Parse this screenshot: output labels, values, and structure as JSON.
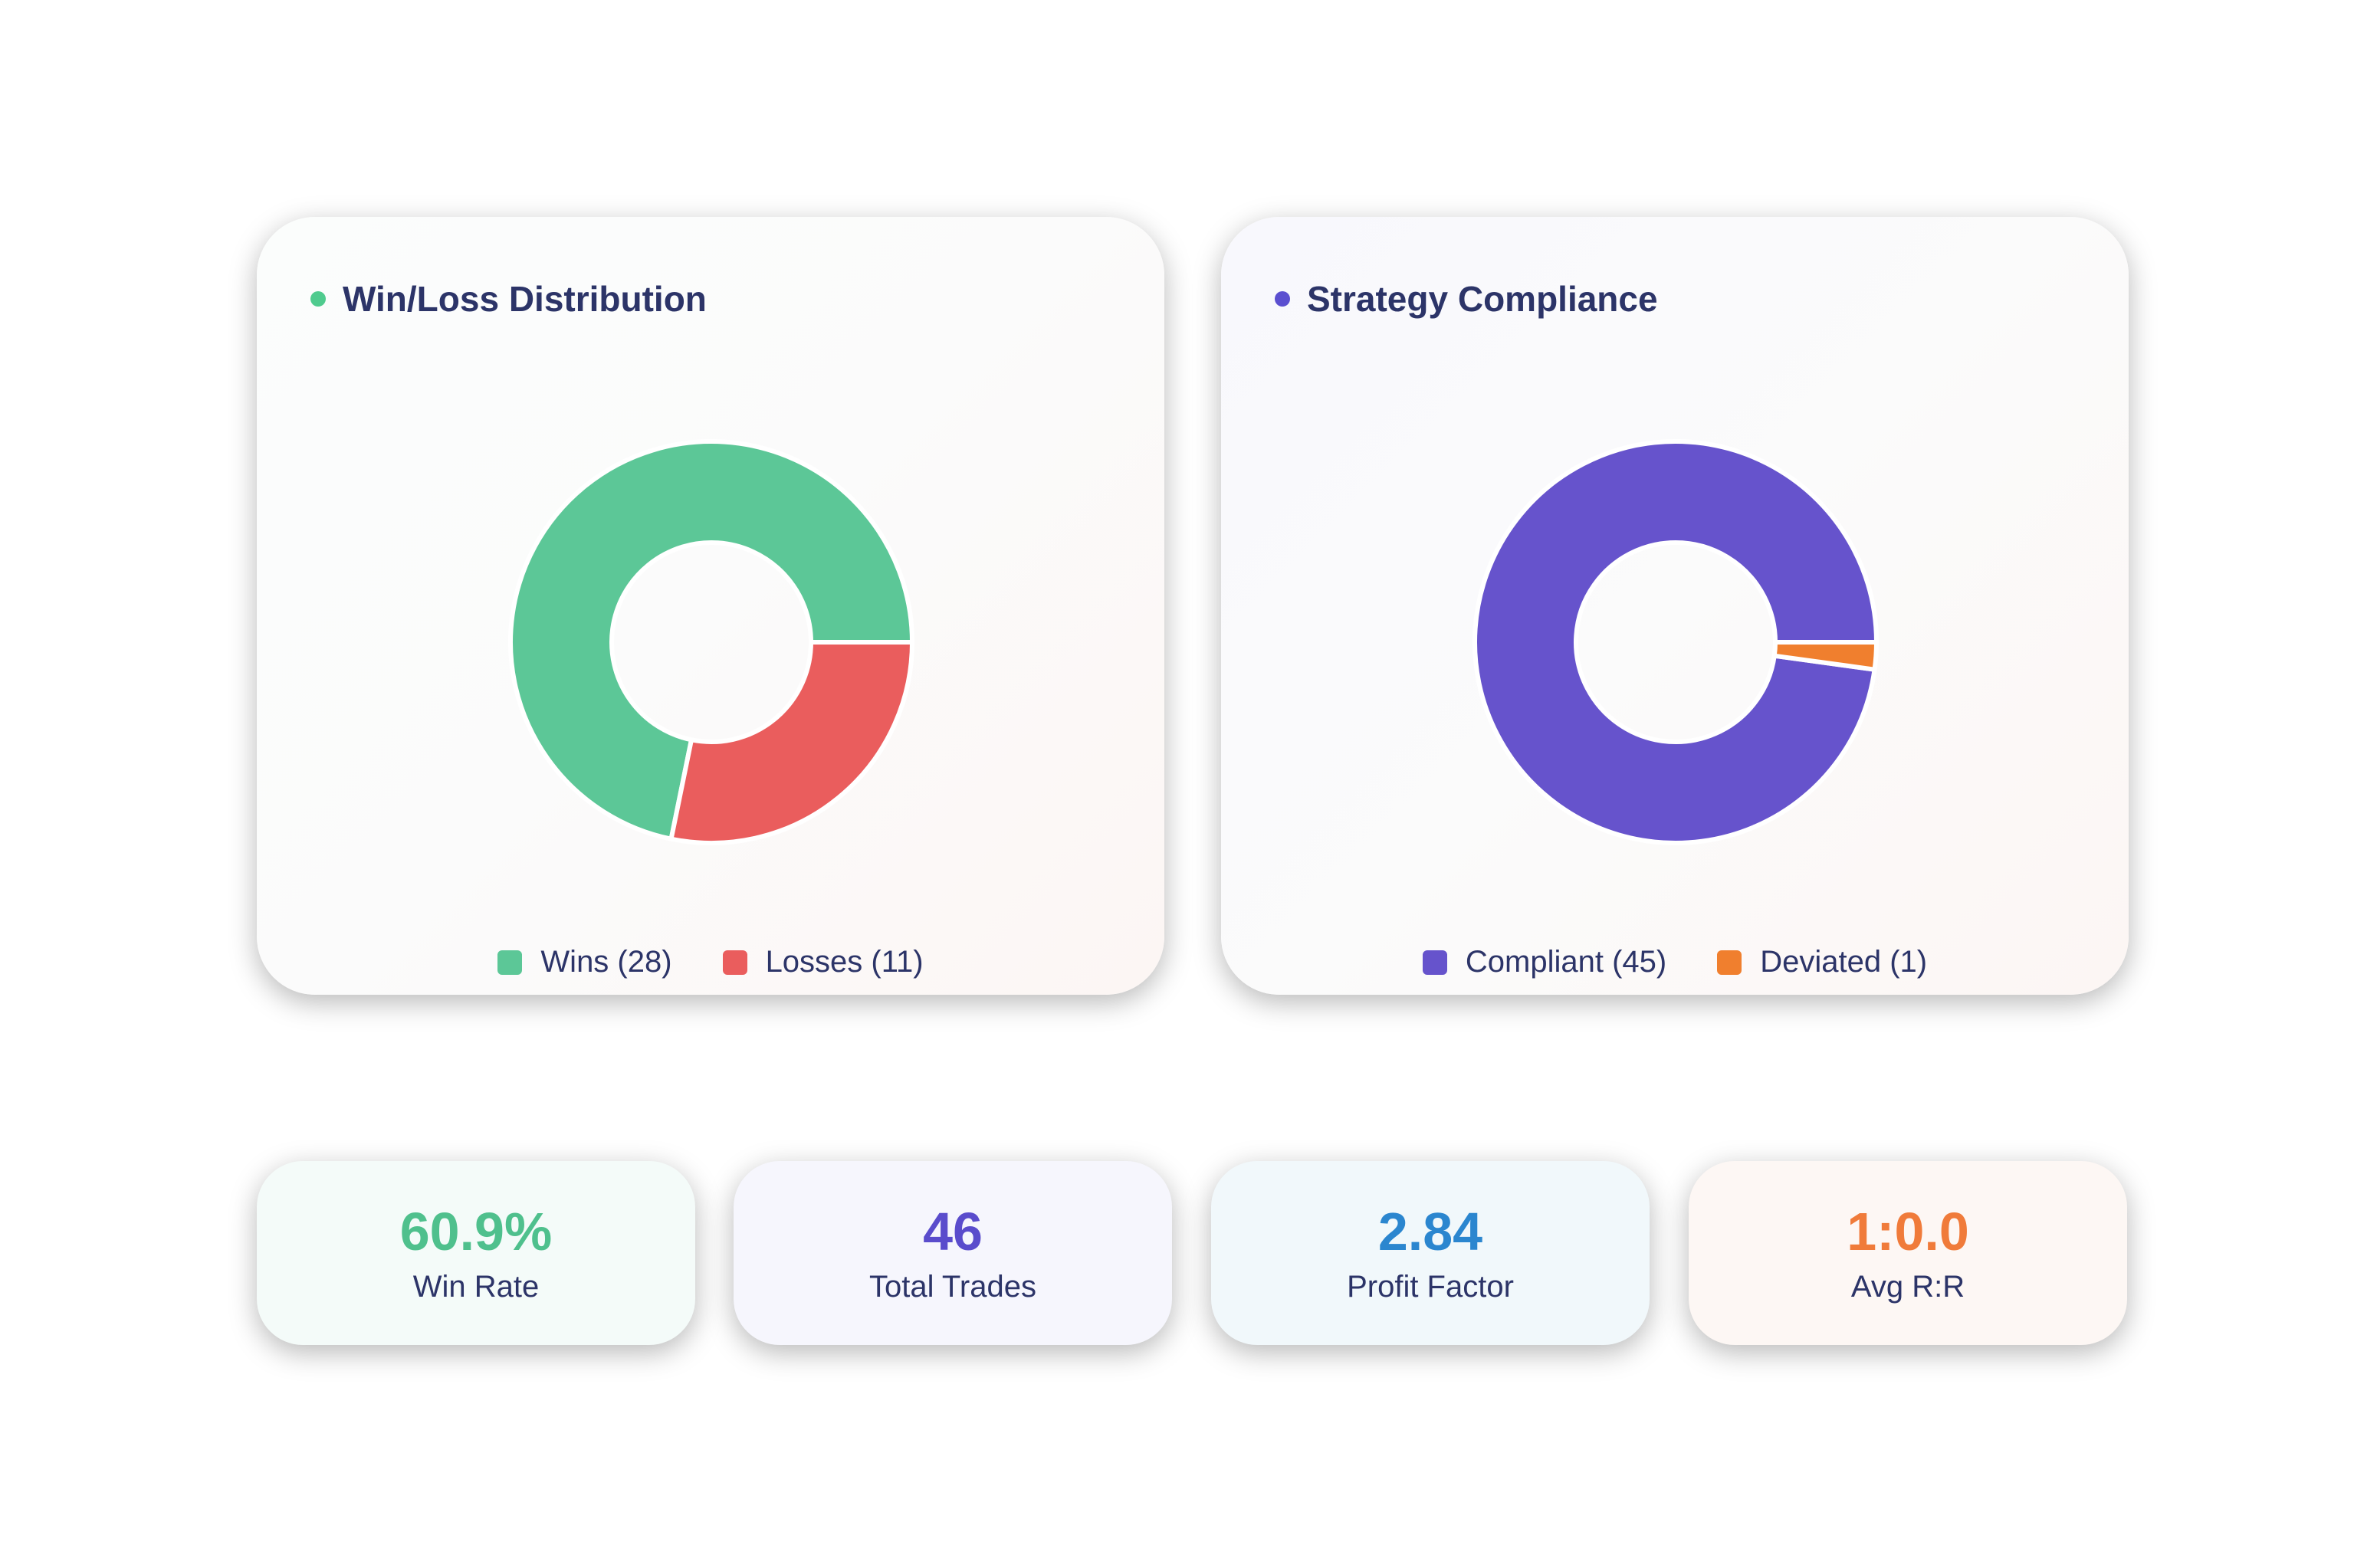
{
  "chart_data": [
    {
      "type": "pie",
      "title": "Win/Loss Distribution",
      "donut": true,
      "categories": [
        "Wins",
        "Losses"
      ],
      "values": [
        28,
        11
      ],
      "colors": [
        "#5cc797",
        "#ea5d5d"
      ],
      "accent": "#4fcb8e",
      "legend": [
        "Wins (28)",
        "Losses (11)"
      ],
      "legend_position": "bottom"
    },
    {
      "type": "pie",
      "title": "Strategy Compliance",
      "donut": true,
      "categories": [
        "Compliant",
        "Deviated"
      ],
      "values": [
        45,
        1
      ],
      "colors": [
        "#6653cc",
        "#f07f2e"
      ],
      "accent": "#5b4fd0",
      "legend": [
        "Compliant (45)",
        "Deviated (1)"
      ],
      "legend_position": "bottom"
    }
  ],
  "stats": [
    {
      "value": "60.9%",
      "label": "Win Rate",
      "color": "#4fc08d",
      "bg": "#f4fbf9"
    },
    {
      "value": "46",
      "label": "Total Trades",
      "color": "#5a4ccc",
      "bg": "#f6f6fd"
    },
    {
      "value": "2.84",
      "label": "Profit Factor",
      "color": "#2b86cf",
      "bg": "#f1f8fb"
    },
    {
      "value": "1:0.0",
      "label": "Avg R:R",
      "color": "#f07b3a",
      "bg": "#fdf7f4"
    }
  ]
}
